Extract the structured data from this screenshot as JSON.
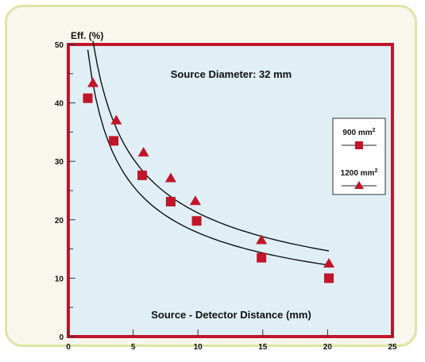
{
  "chart_data": {
    "type": "scatter",
    "title": "",
    "ylabel": "Eff. (%)",
    "xlabel": "",
    "annotations": [
      "Source Diameter: 32 mm",
      "Source - Detector Distance (mm)"
    ],
    "xlim": [
      0,
      25
    ],
    "ylim": [
      0,
      50
    ],
    "xticks": [
      0,
      5,
      10,
      15,
      20,
      25
    ],
    "yticks": [
      0,
      10,
      20,
      30,
      40,
      50
    ],
    "xtick_labels": [
      "0",
      "5",
      "10",
      "15",
      "20",
      "25"
    ],
    "ytick_labels": [
      "0",
      "10",
      "20",
      "30",
      "40",
      "50"
    ],
    "grid": false,
    "legend_position": "right",
    "series": [
      {
        "name": "900 mm2",
        "marker": "square",
        "color": "#c1152a",
        "x": [
          1.5,
          3.5,
          5.7,
          7.9,
          9.9,
          14.9,
          20.1
        ],
        "y": [
          40.8,
          33.5,
          27.6,
          23.1,
          19.8,
          13.5,
          10.0
        ]
      },
      {
        "name": "1200 mm2",
        "marker": "triangle",
        "color": "#c1152a",
        "x": [
          1.9,
          3.7,
          5.8,
          7.9,
          9.8,
          14.9,
          20.1
        ],
        "y": [
          43.4,
          37.0,
          31.5,
          27.1,
          23.2,
          16.5,
          12.5
        ]
      }
    ]
  },
  "legend": {
    "s1_base": "900 mm",
    "s1_sup": "2",
    "s2_base": "1200 mm",
    "s2_sup": "2"
  },
  "colors": {
    "plot_background": "#dfeff5",
    "plot_border": "#c1152a",
    "marker": "#c1152a",
    "card_border": "#dde6a4"
  }
}
